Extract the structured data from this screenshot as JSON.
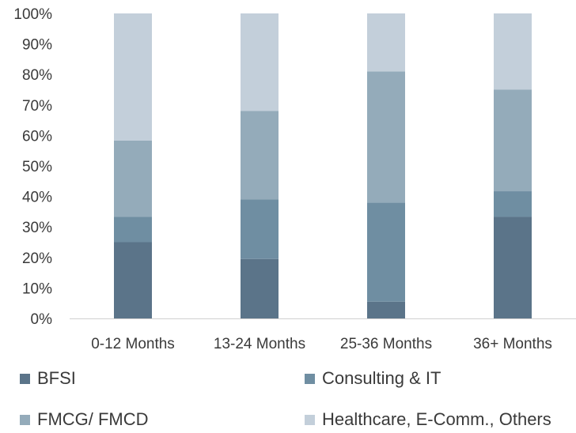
{
  "chart_data": {
    "type": "bar",
    "stacked": true,
    "categories": [
      "0-12 Months",
      "13-24 Months",
      "25-36 Months",
      "36+ Months"
    ],
    "series": [
      {
        "name": "BFSI",
        "values": [
          25,
          19.5,
          5.5,
          33.3
        ],
        "color": "#5b7489"
      },
      {
        "name": "Consulting & IT",
        "values": [
          8.3,
          19.5,
          32.5,
          8.4
        ],
        "color": "#6f8ea2"
      },
      {
        "name": "FMCG/ FMCD",
        "values": [
          25,
          29,
          43,
          33.3
        ],
        "color": "#94abba"
      },
      {
        "name": "Healthcare, E-Comm., Others",
        "values": [
          41.7,
          32,
          19,
          25
        ],
        "color": "#c3cfda"
      }
    ],
    "ylim": [
      0,
      100
    ],
    "yticks": [
      "0%",
      "10%",
      "20%",
      "30%",
      "40%",
      "50%",
      "60%",
      "70%",
      "80%",
      "90%",
      "100%"
    ],
    "grid": false,
    "legend_position": "bottom",
    "title": "",
    "xlabel": "",
    "ylabel": ""
  }
}
